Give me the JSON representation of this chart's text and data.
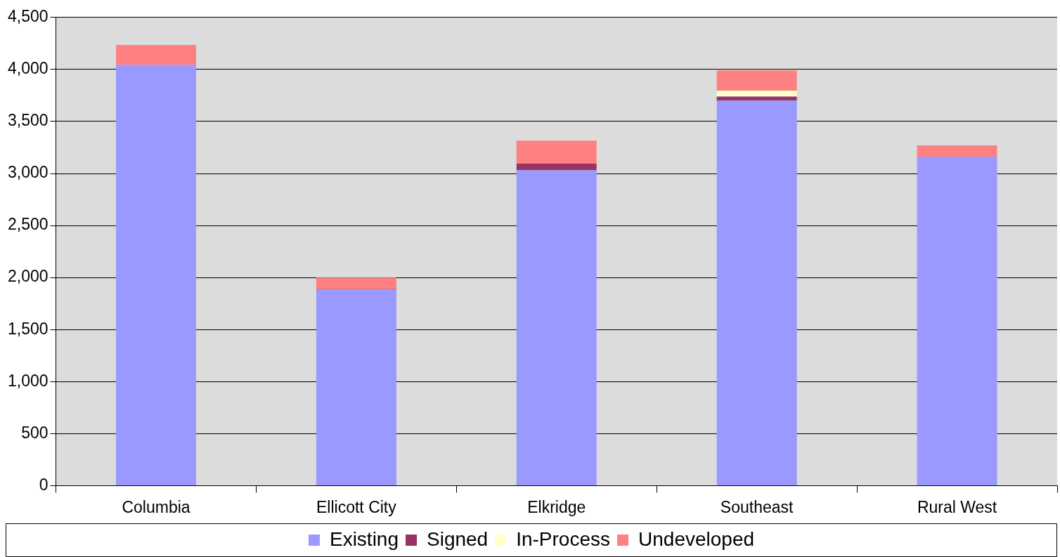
{
  "chart_data": {
    "type": "bar",
    "stacked": true,
    "categories": [
      "Columbia",
      "Ellicott City",
      "Elkridge",
      "Southeast",
      "Rural West"
    ],
    "series": [
      {
        "name": "Existing",
        "color": "#9999ff",
        "values": [
          4045,
          1885,
          3030,
          3700,
          3160
        ]
      },
      {
        "name": "Signed",
        "color": "#993366",
        "values": [
          null,
          5,
          65,
          40,
          0
        ]
      },
      {
        "name": "In-Process",
        "color": "#ffffcc",
        "values": [
          null,
          0,
          0,
          55,
          null
        ]
      },
      {
        "name": "Undeveloped",
        "color": "#ff8080",
        "values": [
          190,
          110,
          220,
          195,
          110
        ]
      }
    ],
    "ylim": [
      0,
      4500
    ],
    "yticks": [
      {
        "value": 0,
        "label": "0"
      },
      {
        "value": 500,
        "label": "500"
      },
      {
        "value": 1000,
        "label": "1,000"
      },
      {
        "value": 1500,
        "label": "1,500"
      },
      {
        "value": 2000,
        "label": "2,000"
      },
      {
        "value": 2500,
        "label": "2,500"
      },
      {
        "value": 3000,
        "label": "3,000"
      },
      {
        "value": 3500,
        "label": "3,500"
      },
      {
        "value": 4000,
        "label": "4,000"
      },
      {
        "value": 4500,
        "label": "4,500"
      }
    ],
    "grid": "y",
    "legend": "bottom"
  }
}
